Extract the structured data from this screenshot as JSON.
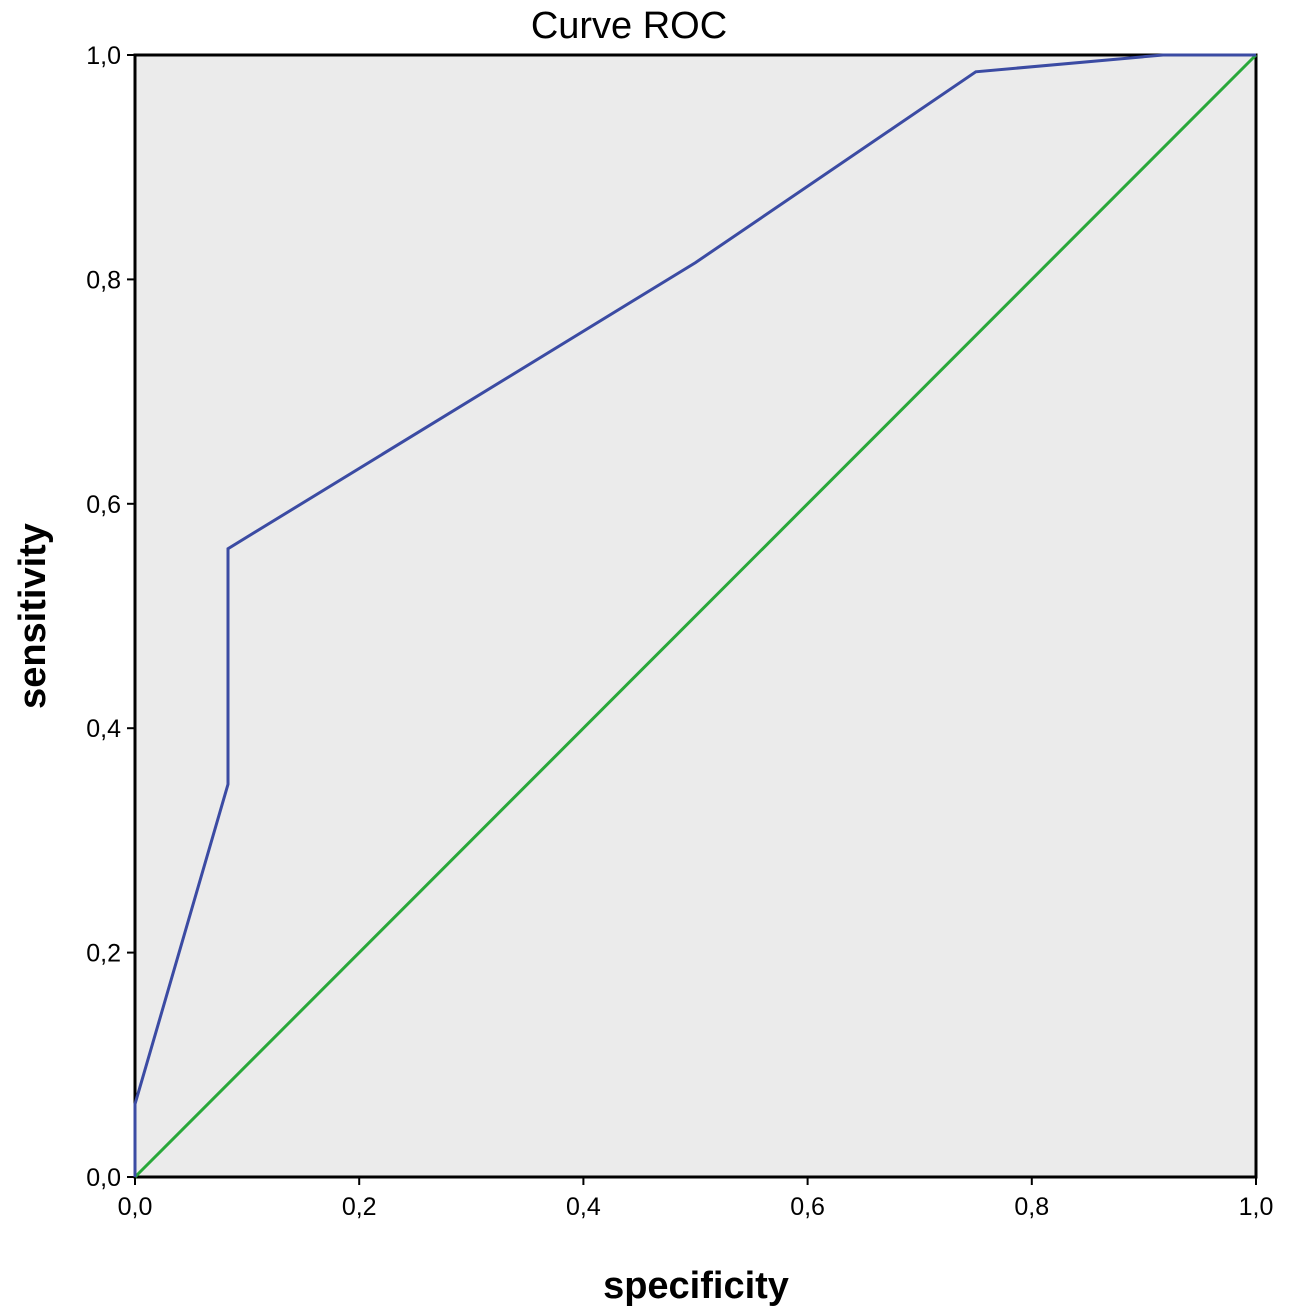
{
  "chart_data": {
    "type": "line",
    "title": "Curve ROC",
    "xlabel": "specificity",
    "ylabel": "sensitivity",
    "xlim": [
      0,
      1
    ],
    "ylim": [
      0,
      1
    ],
    "x_ticks": [
      "0,0",
      "0,2",
      "0,4",
      "0,6",
      "0,8",
      "1,0"
    ],
    "y_ticks": [
      "0,0",
      "0,2",
      "0,4",
      "0,6",
      "0,8",
      "1,0"
    ],
    "x_tick_values": [
      0,
      0.2,
      0.4,
      0.6,
      0.8,
      1.0
    ],
    "y_tick_values": [
      0,
      0.2,
      0.4,
      0.6,
      0.8,
      1.0
    ],
    "grid": false,
    "legend": "none",
    "background_color": "#ebebeb",
    "series": [
      {
        "color": "#3b4ba3",
        "points": [
          [
            0.0,
            0.0
          ],
          [
            0.0,
            0.065
          ],
          [
            0.083,
            0.35
          ],
          [
            0.083,
            0.56
          ],
          [
            0.5,
            0.815
          ],
          [
            0.75,
            0.985
          ],
          [
            0.917,
            1.0
          ],
          [
            1.0,
            1.0
          ]
        ]
      },
      {
        "color": "#29a83a",
        "points": [
          [
            0.0,
            0.0
          ],
          [
            1.0,
            1.0
          ]
        ]
      }
    ]
  }
}
